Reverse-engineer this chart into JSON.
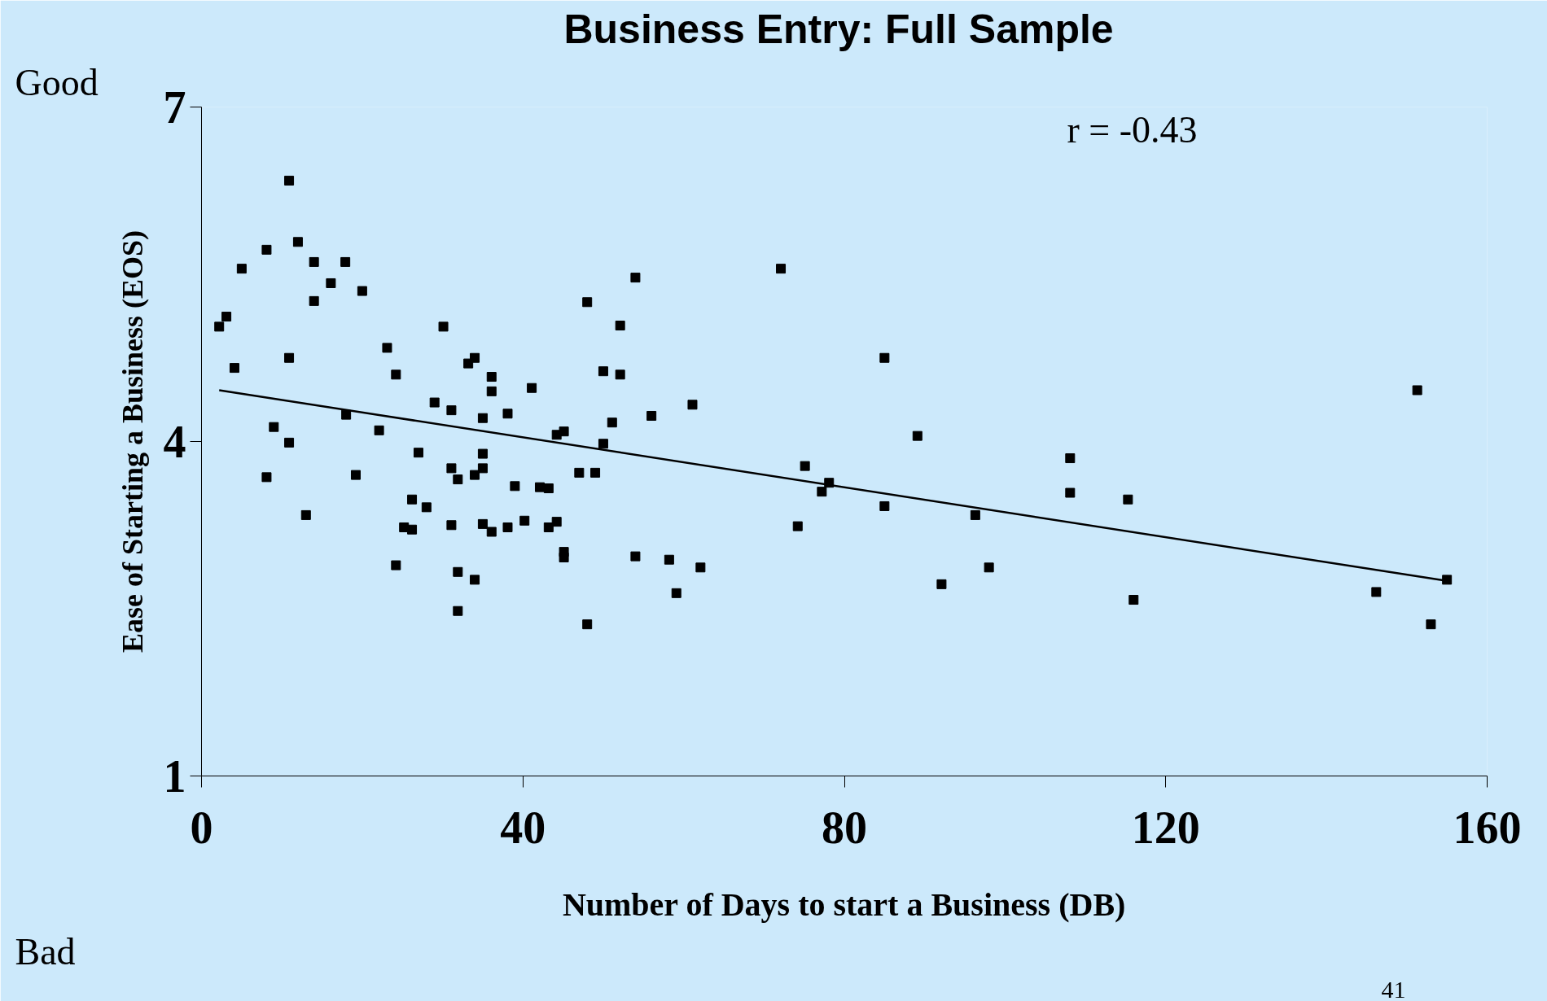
{
  "chart_data": {
    "type": "scatter",
    "title": "Business Entry:  Full Sample",
    "xlabel": "Number of Days to start a Business (DB)",
    "ylabel": "Ease of Starting a Business (EOS)",
    "annotations": [
      "Good",
      "Bad",
      "r = -0.43",
      "41"
    ],
    "xlim": [
      0,
      160
    ],
    "xticks": [
      0,
      40,
      80,
      120,
      160
    ],
    "ylim": [
      1,
      7
    ],
    "yticks": [
      1,
      4,
      7
    ],
    "grid": false,
    "series": [
      {
        "marker": "square",
        "color": "#000000",
        "x": [
          2.2,
          3.1,
          4.1,
          5.0,
          8.1,
          8.1,
          9.0,
          10.9,
          10.9,
          10.9,
          12.0,
          13.0,
          14.0,
          14.0,
          16.1,
          17.9,
          18.0,
          19.2,
          20.0,
          22.1,
          23.1,
          24.2,
          24.2,
          25.2,
          26.2,
          26.2,
          27.0,
          28.0,
          29.0,
          30.1,
          31.1,
          31.1,
          31.1,
          31.9,
          31.9,
          31.9,
          33.2,
          34.0,
          34.0,
          34.0,
          35.0,
          35.0,
          35.0,
          35.0,
          36.1,
          36.1,
          36.1,
          38.1,
          38.1,
          39.0,
          40.2,
          41.1,
          42.1,
          43.2,
          43.2,
          44.2,
          44.2,
          45.1,
          45.1,
          45.1,
          47.0,
          48.0,
          48.0,
          49.0,
          50.0,
          50.0,
          51.1,
          52.1,
          52.1,
          54.0,
          54.0,
          56.0,
          58.2,
          59.1,
          61.1,
          62.1,
          72.1,
          74.2,
          75.1,
          77.2,
          78.1,
          85.0,
          85.0,
          89.1,
          92.1,
          96.3,
          98.0,
          108.1,
          108.1,
          115.3,
          116.0,
          146.2,
          151.3,
          153.0,
          155.0
        ],
        "values": [
          5.03,
          5.12,
          4.66,
          5.55,
          5.72,
          3.68,
          4.13,
          6.34,
          4.75,
          3.99,
          5.79,
          3.34,
          5.61,
          5.26,
          5.42,
          5.61,
          4.24,
          3.7,
          5.35,
          4.1,
          4.84,
          4.6,
          2.89,
          3.23,
          3.48,
          3.21,
          3.9,
          3.41,
          4.35,
          5.03,
          4.28,
          3.76,
          3.25,
          3.66,
          2.83,
          2.48,
          4.7,
          4.75,
          3.7,
          2.76,
          4.21,
          3.89,
          3.76,
          3.26,
          4.58,
          4.45,
          3.19,
          4.25,
          3.23,
          3.6,
          3.29,
          4.48,
          3.59,
          3.58,
          3.23,
          4.06,
          3.28,
          4.09,
          3.01,
          2.96,
          3.72,
          5.25,
          2.36,
          3.72,
          3.98,
          4.63,
          4.17,
          5.04,
          4.6,
          5.47,
          2.97,
          4.23,
          2.94,
          2.64,
          4.33,
          2.87,
          5.55,
          3.24,
          3.78,
          3.55,
          3.63,
          4.75,
          3.42,
          4.05,
          2.72,
          3.34,
          2.87,
          3.85,
          3.54,
          3.48,
          2.58,
          2.65,
          4.46,
          2.36,
          2.76
        ]
      },
      {
        "type": "line",
        "color": "#000000",
        "x": [
          2.2,
          155.0
        ],
        "values": [
          4.46,
          2.75
        ]
      }
    ]
  }
}
